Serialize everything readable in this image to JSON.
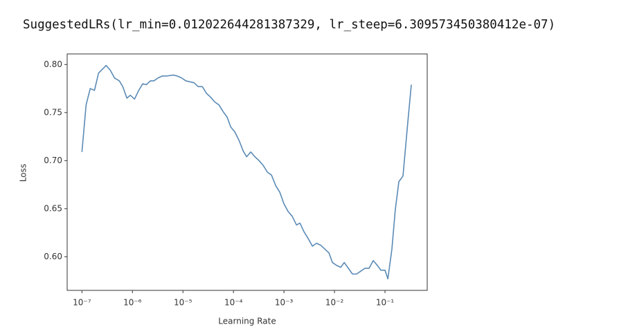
{
  "output": "SuggestedLRs(lr_min=0.012022644281387329, lr_steep=6.309573450380412e-07)",
  "chart_data": {
    "type": "line",
    "xlabel": "Learning Rate",
    "ylabel": "Loss",
    "xscale": "log",
    "xlim": [
      5.1e-08,
      0.685
    ],
    "ylim": [
      0.565,
      0.811
    ],
    "xticks": [
      {
        "value": 1e-07,
        "label": "10⁻⁷"
      },
      {
        "value": 1e-06,
        "label": "10⁻⁶"
      },
      {
        "value": 1e-05,
        "label": "10⁻⁵"
      },
      {
        "value": 0.0001,
        "label": "10⁻⁴"
      },
      {
        "value": 0.001,
        "label": "10⁻³"
      },
      {
        "value": 0.01,
        "label": "10⁻²"
      },
      {
        "value": 0.1,
        "label": "10⁻¹"
      }
    ],
    "yticks": [
      {
        "value": 0.6,
        "label": "0.60"
      },
      0.65,
      {
        "value": 0.7,
        "label": "0.70"
      },
      0.75,
      {
        "value": 0.8,
        "label": "0.80"
      }
    ],
    "color": "#5a8ab5",
    "x": [
      1e-07,
      1.21e-07,
      1.46e-07,
      1.77e-07,
      2.13e-07,
      3.01e-07,
      3.65e-07,
      4.41e-07,
      5.5e-07,
      6.43e-07,
      7.76e-07,
      9.1e-07,
      1.1e-06,
      1.33e-06,
      1.6e-06,
      1.88e-06,
      2.27e-06,
      2.66e-06,
      3.21e-06,
      3.88e-06,
      4.69e-06,
      6.43e-06,
      7.76e-06,
      9.4e-06,
      1.14e-05,
      1.66e-05,
      2e-05,
      2.42e-05,
      2.92e-05,
      3.53e-05,
      4.27e-05,
      5.15e-05,
      6.24e-05,
      7.53e-05,
      8.81e-05,
      0.000106,
      0.000129,
      0.000156,
      0.000182,
      0.00022,
      0.000266,
      0.000321,
      0.000388,
      0.000469,
      0.000566,
      0.000685,
      0.000828,
      0.001,
      0.00121,
      0.00146,
      0.00177,
      0.00207,
      0.00249,
      0.00301,
      0.00365,
      0.00441,
      0.00532,
      0.00643,
      0.00776,
      0.0091,
      0.011,
      0.0133,
      0.0156,
      0.0188,
      0.0227,
      0.0274,
      0.0332,
      0.0401,
      0.0484,
      0.0585,
      0.0706,
      0.0828,
      0.1,
      0.114,
      0.137,
      0.16,
      0.188,
      0.227,
      0.283,
      0.332
    ],
    "values": [
      0.709,
      0.758,
      0.775,
      0.773,
      0.791,
      0.799,
      0.794,
      0.786,
      0.783,
      0.777,
      0.765,
      0.768,
      0.764,
      0.773,
      0.78,
      0.779,
      0.783,
      0.783,
      0.786,
      0.788,
      0.788,
      0.789,
      0.788,
      0.786,
      0.783,
      0.781,
      0.777,
      0.777,
      0.77,
      0.766,
      0.761,
      0.758,
      0.751,
      0.745,
      0.735,
      0.73,
      0.721,
      0.71,
      0.704,
      0.709,
      0.704,
      0.7,
      0.695,
      0.688,
      0.685,
      0.674,
      0.667,
      0.655,
      0.647,
      0.642,
      0.633,
      0.635,
      0.626,
      0.619,
      0.611,
      0.614,
      0.612,
      0.608,
      0.604,
      0.594,
      0.591,
      0.589,
      0.594,
      0.588,
      0.582,
      0.582,
      0.585,
      0.588,
      0.588,
      0.596,
      0.591,
      0.586,
      0.586,
      0.577,
      0.608,
      0.649,
      0.678,
      0.684,
      0.74,
      0.779
    ]
  }
}
